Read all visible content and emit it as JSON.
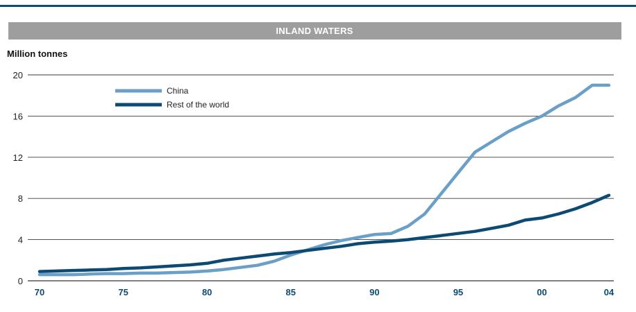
{
  "chart_data": {
    "type": "line",
    "title": "INLAND WATERS",
    "ylabel": "Million tonnes",
    "xlabel": "",
    "ylim": [
      0,
      20
    ],
    "xlim": [
      1970,
      2004
    ],
    "y_ticks": [
      "0",
      "4",
      "8",
      "12",
      "16",
      "20"
    ],
    "x_ticks": [
      {
        "year": 1970,
        "label": "70"
      },
      {
        "year": 1975,
        "label": "75"
      },
      {
        "year": 1980,
        "label": "80"
      },
      {
        "year": 1985,
        "label": "85"
      },
      {
        "year": 1990,
        "label": "90"
      },
      {
        "year": 1995,
        "label": "95"
      },
      {
        "year": 2000,
        "label": "00"
      },
      {
        "year": 2004,
        "label": "04"
      }
    ],
    "grid": "horizontal",
    "legend_position": "top-left",
    "x": [
      1970,
      1971,
      1972,
      1973,
      1974,
      1975,
      1976,
      1977,
      1978,
      1979,
      1980,
      1981,
      1982,
      1983,
      1984,
      1985,
      1986,
      1987,
      1988,
      1989,
      1990,
      1991,
      1992,
      1993,
      1994,
      1995,
      1996,
      1997,
      1998,
      1999,
      2000,
      2001,
      2002,
      2003,
      2004
    ],
    "series": [
      {
        "name": "China",
        "color": "#6a9fc8",
        "values": [
          0.6,
          0.6,
          0.6,
          0.65,
          0.7,
          0.7,
          0.75,
          0.75,
          0.8,
          0.85,
          0.95,
          1.1,
          1.3,
          1.5,
          1.9,
          2.5,
          3.0,
          3.5,
          3.9,
          4.2,
          4.5,
          4.6,
          5.3,
          6.5,
          8.5,
          10.5,
          12.5,
          13.5,
          14.5,
          15.3,
          16.0,
          17.0,
          17.8,
          19.0,
          19.0
        ]
      },
      {
        "name": "Rest of the world",
        "color": "#0d4a73",
        "values": [
          0.9,
          0.95,
          1.0,
          1.05,
          1.1,
          1.2,
          1.25,
          1.35,
          1.45,
          1.55,
          1.7,
          2.0,
          2.2,
          2.4,
          2.6,
          2.75,
          2.95,
          3.15,
          3.35,
          3.6,
          3.75,
          3.85,
          4.0,
          4.2,
          4.4,
          4.6,
          4.8,
          5.1,
          5.4,
          5.9,
          6.1,
          6.5,
          7.0,
          7.6,
          8.3
        ]
      }
    ]
  }
}
